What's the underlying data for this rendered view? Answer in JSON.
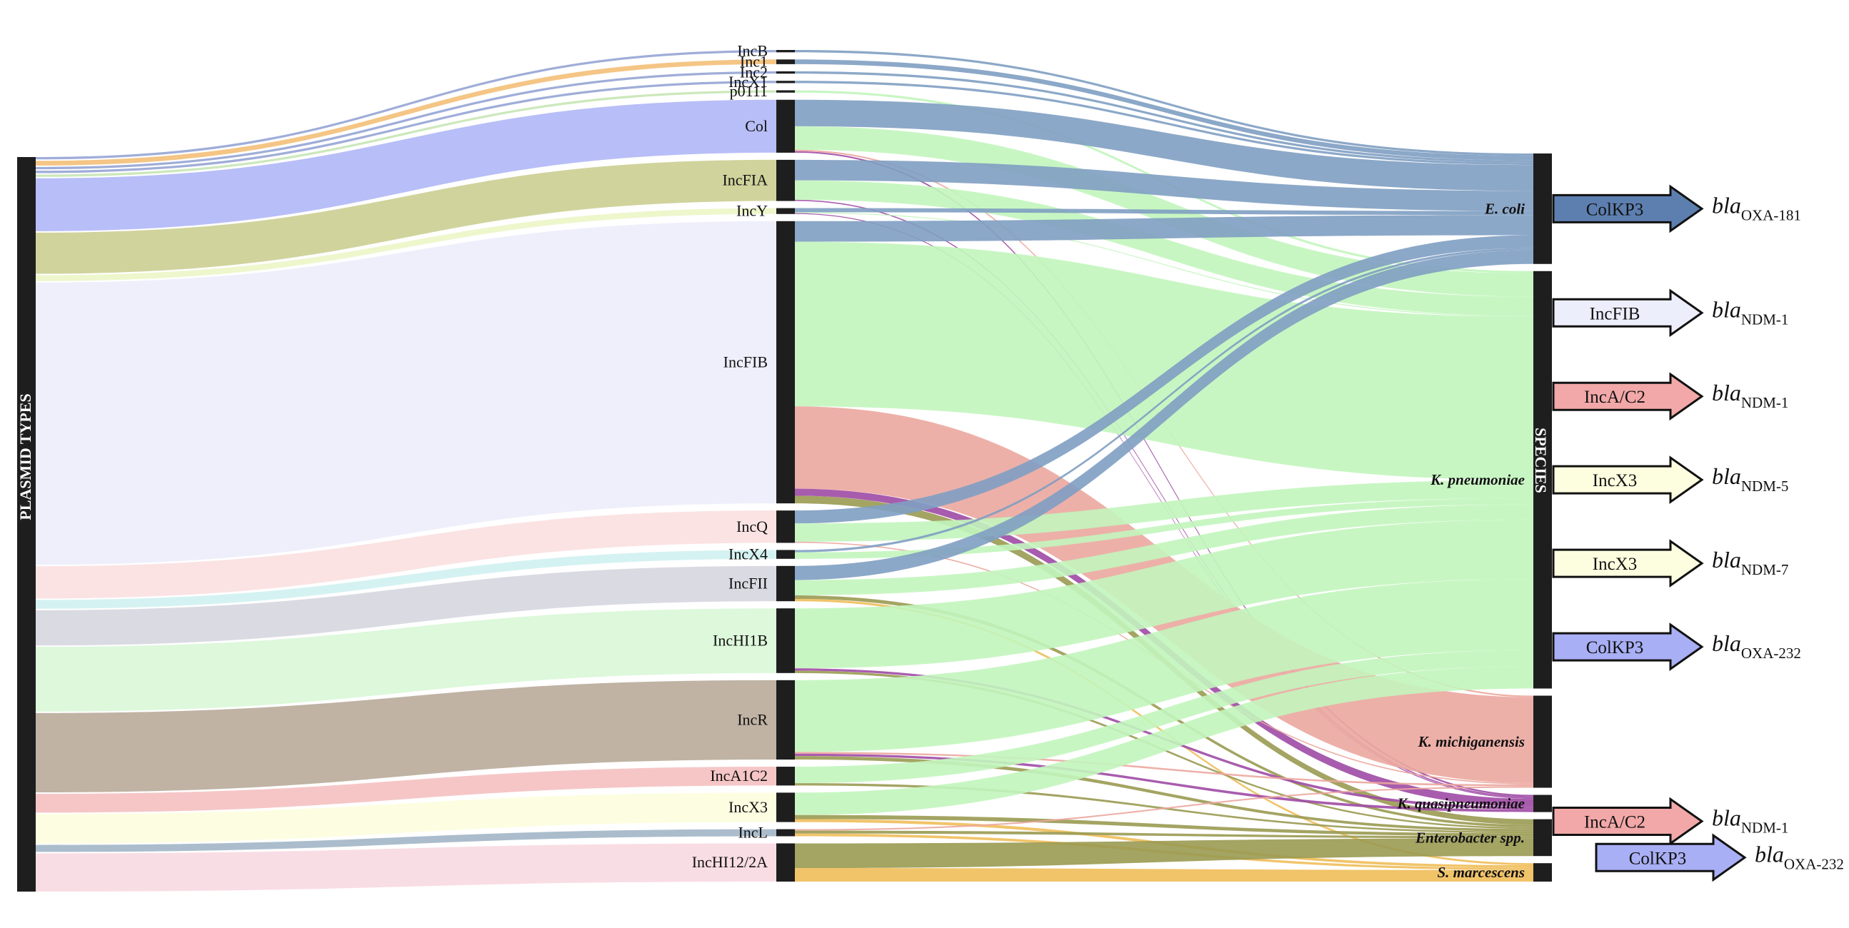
{
  "axis_labels": {
    "plasmid_types": "PLASMID TYPES",
    "species": "SPECIES"
  },
  "middle_nodes": [
    {
      "id": "IncB",
      "label": "IncB",
      "value": 0.4,
      "color": "#9aa9d6"
    },
    {
      "id": "Inc1",
      "label": "Inc1",
      "value": 0.8,
      "color": "#f3c27e"
    },
    {
      "id": "Inc2",
      "label": "Inc2",
      "value": 0.4,
      "color": "#9aa9d6"
    },
    {
      "id": "IncX1",
      "label": "IncX1",
      "value": 0.4,
      "color": "#9aa9d6"
    },
    {
      "id": "p0111",
      "label": "p0111",
      "value": 0.4,
      "color": "#c9e7b8"
    },
    {
      "id": "Col",
      "label": "Col",
      "value": 9,
      "color": "#b4baf7"
    },
    {
      "id": "IncFIA",
      "label": "IncFIA",
      "value": 7,
      "color": "#cdd197"
    },
    {
      "id": "IncY",
      "label": "IncY",
      "value": 1,
      "color": "#edf6c9"
    },
    {
      "id": "IncFIB",
      "label": "IncFIB",
      "value": 48,
      "color": "#edeefb"
    },
    {
      "id": "IncQ",
      "label": "IncQ",
      "value": 5.5,
      "color": "#fbe1e1"
    },
    {
      "id": "IncX4",
      "label": "IncX4",
      "value": 1.5,
      "color": "#d3f1f1"
    },
    {
      "id": "IncFII",
      "label": "IncFII",
      "value": 6,
      "color": "#d8d8e2"
    },
    {
      "id": "IncHI1B",
      "label": "IncHI1B",
      "value": 11,
      "color": "#dbf8d9"
    },
    {
      "id": "IncR",
      "label": "IncR",
      "value": 13.5,
      "color": "#bdaf9f"
    },
    {
      "id": "IncA1C2",
      "label": "IncA1C2",
      "value": 3.2,
      "color": "#f6c3c3"
    },
    {
      "id": "IncX3",
      "label": "IncX3",
      "value": 5,
      "color": "#fdfedf"
    },
    {
      "id": "IncL",
      "label": "IncL",
      "value": 1.2,
      "color": "#a7b9c9"
    },
    {
      "id": "IncHI12/2A",
      "label": "IncHI12/2A",
      "value": 6.5,
      "color": "#f9dbe3"
    }
  ],
  "species": [
    {
      "id": "ecoli",
      "label": "E. coli",
      "value": 18,
      "color": "#7f9fc2"
    },
    {
      "id": "kpneu",
      "label": "K. pneumoniae",
      "value": 68,
      "color": "#c2f5bc"
    },
    {
      "id": "kmich",
      "label": "K. michiganensis",
      "value": 15,
      "color": "#eba79e"
    },
    {
      "id": "kquasi",
      "label": "K. quasipneumoniae",
      "value": 2.8,
      "color": "#9e4aa5"
    },
    {
      "id": "ent",
      "label": "Enterobacter spp.",
      "value": 6,
      "color": "#9a9a52"
    },
    {
      "id": "smarc",
      "label": "S. marcescens",
      "value": 3,
      "color": "#f0be5a"
    }
  ],
  "links": [
    {
      "source": "IncB",
      "target": "ecoli",
      "value": 0.4
    },
    {
      "source": "Inc1",
      "target": "ecoli",
      "value": 0.8
    },
    {
      "source": "Inc2",
      "target": "ecoli",
      "value": 0.4
    },
    {
      "source": "IncX1",
      "target": "ecoli",
      "value": 0.4
    },
    {
      "source": "p0111",
      "target": "kpneu",
      "value": 0.4
    },
    {
      "source": "Col",
      "target": "ecoli",
      "value": 4.5
    },
    {
      "source": "Col",
      "target": "kpneu",
      "value": 4
    },
    {
      "source": "Col",
      "target": "kmich",
      "value": 0.25
    },
    {
      "source": "Col",
      "target": "kquasi",
      "value": 0.25
    },
    {
      "source": "IncFIA",
      "target": "ecoli",
      "value": 3.5
    },
    {
      "source": "IncFIA",
      "target": "kpneu",
      "value": 3.3
    },
    {
      "source": "IncFIA",
      "target": "kquasi",
      "value": 0.2
    },
    {
      "source": "IncY",
      "target": "ecoli",
      "value": 0.7
    },
    {
      "source": "IncY",
      "target": "kpneu",
      "value": 0.15
    },
    {
      "source": "IncY",
      "target": "kquasi",
      "value": 0.15
    },
    {
      "source": "IncFIB",
      "target": "ecoli",
      "value": 3.5
    },
    {
      "source": "IncFIB",
      "target": "kpneu",
      "value": 28
    },
    {
      "source": "IncFIB",
      "target": "kmich",
      "value": 14
    },
    {
      "source": "IncFIB",
      "target": "kquasi",
      "value": 1.2
    },
    {
      "source": "IncFIB",
      "target": "ent",
      "value": 1.3
    },
    {
      "source": "IncQ",
      "target": "ecoli",
      "value": 2.2
    },
    {
      "source": "IncQ",
      "target": "kpneu",
      "value": 3.1
    },
    {
      "source": "IncQ",
      "target": "kmich",
      "value": 0.2
    },
    {
      "source": "IncX4",
      "target": "ecoli",
      "value": 0.4
    },
    {
      "source": "IncX4",
      "target": "kpneu",
      "value": 1.1
    },
    {
      "source": "IncFII",
      "target": "ecoli",
      "value": 2.4
    },
    {
      "source": "IncFII",
      "target": "kpneu",
      "value": 2.6
    },
    {
      "source": "IncFII",
      "target": "ent",
      "value": 0.6
    },
    {
      "source": "IncFII",
      "target": "smarc",
      "value": 0.4
    },
    {
      "source": "IncHI1B",
      "target": "kpneu",
      "value": 10.2
    },
    {
      "source": "IncHI1B",
      "target": "kquasi",
      "value": 0.4
    },
    {
      "source": "IncHI1B",
      "target": "ent",
      "value": 0.4
    },
    {
      "source": "IncR",
      "target": "kpneu",
      "value": 12.2
    },
    {
      "source": "IncR",
      "target": "kmich",
      "value": 0.3
    },
    {
      "source": "IncR",
      "target": "kquasi",
      "value": 0.4
    },
    {
      "source": "IncR",
      "target": "ent",
      "value": 0.6
    },
    {
      "source": "IncA1C2",
      "target": "kpneu",
      "value": 2.8
    },
    {
      "source": "IncA1C2",
      "target": "ent",
      "value": 0.4
    },
    {
      "source": "IncX3",
      "target": "kpneu",
      "value": 3.8
    },
    {
      "source": "IncX3",
      "target": "ent",
      "value": 0.7
    },
    {
      "source": "IncX3",
      "target": "smarc",
      "value": 0.5
    },
    {
      "source": "IncL",
      "target": "kmich",
      "value": 0.25
    },
    {
      "source": "IncL",
      "target": "ent",
      "value": 0.5
    },
    {
      "source": "IncL",
      "target": "smarc",
      "value": 0.45
    },
    {
      "source": "IncHI12/2A",
      "target": "ent",
      "value": 4.2
    },
    {
      "source": "IncHI12/2A",
      "target": "smarc",
      "value": 2.3
    }
  ],
  "arrows": [
    {
      "species": "ecoli",
      "label": "ColKP3",
      "color": "#5d7fb0",
      "gene": "bla",
      "subscript": "OXA-181"
    },
    {
      "species": "kpneu",
      "label": "IncFIB",
      "color": "#edeefb",
      "gene": "bla",
      "subscript": "NDM-1"
    },
    {
      "species": "kpneu",
      "label": "IncA/C2",
      "color": "#f2a8a8",
      "gene": "bla",
      "subscript": "NDM-1"
    },
    {
      "species": "kpneu",
      "label": "IncX3",
      "color": "#fdfedf",
      "gene": "bla",
      "subscript": "NDM-5"
    },
    {
      "species": "kpneu",
      "label": "IncX3",
      "color": "#fdfedf",
      "gene": "bla",
      "subscript": "NDM-7"
    },
    {
      "species": "kpneu",
      "label": "ColKP3",
      "color": "#a9aff4",
      "gene": "bla",
      "subscript": "OXA-232"
    },
    {
      "species": "ent",
      "label": "IncA/C2",
      "color": "#f2a8a8",
      "gene": "bla",
      "subscript": "NDM-1"
    },
    {
      "species": "ent",
      "label": "ColKP3",
      "color": "#a9aff4",
      "gene": "bla",
      "subscript": "OXA-232"
    }
  ]
}
